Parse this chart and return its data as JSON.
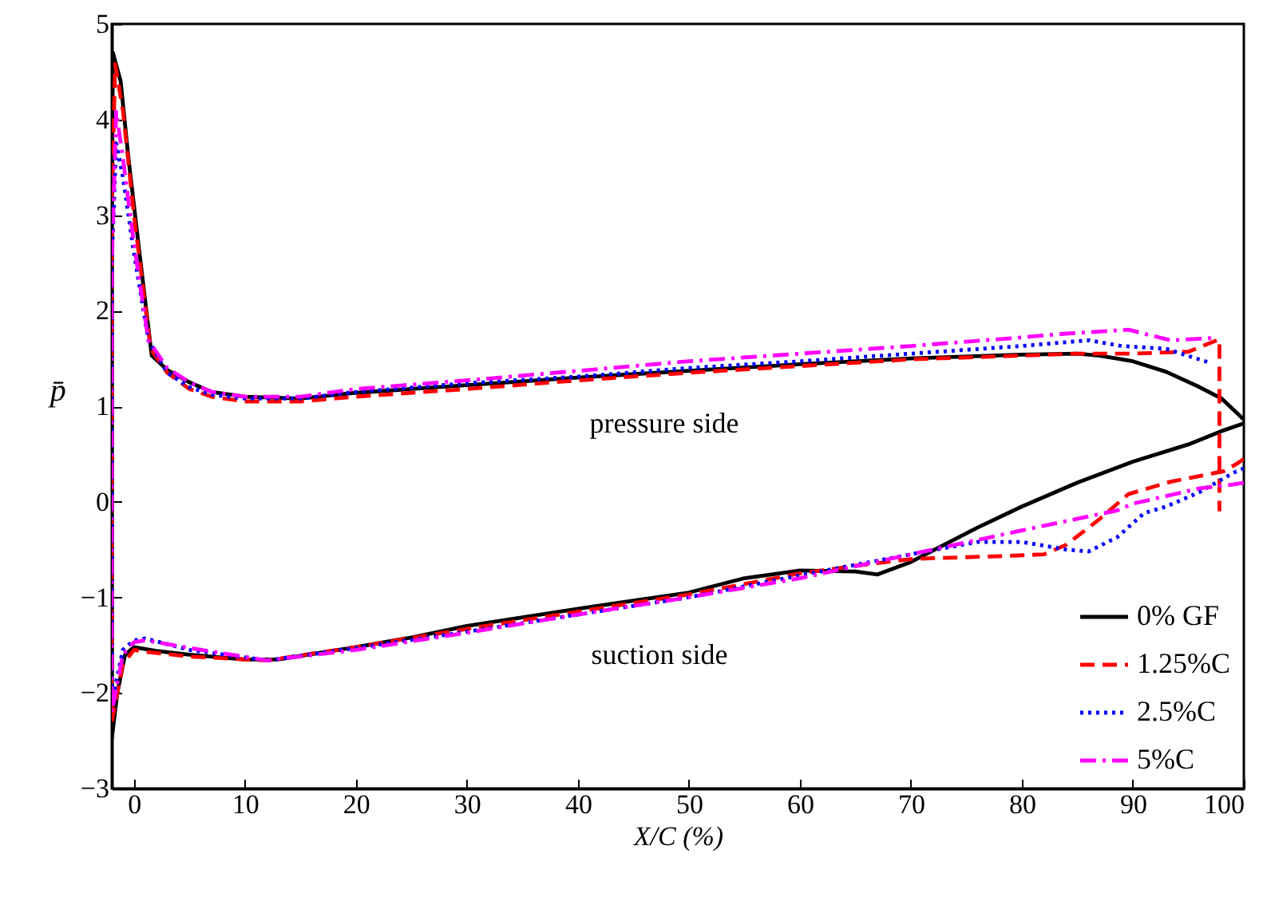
{
  "chart_data": {
    "type": "line",
    "xlabel": "X/C (%)",
    "ylabel": "p̄",
    "xlim": [
      -2,
      100
    ],
    "ylim": [
      -3,
      5
    ],
    "xticks": [
      0,
      10,
      20,
      30,
      40,
      50,
      60,
      70,
      80,
      90,
      100
    ],
    "yticks": [
      -3,
      -2,
      -1,
      0,
      1,
      2,
      3,
      4,
      5
    ],
    "grid": false,
    "legend": "bottom right",
    "annotations": [
      "pressure side",
      "suction side"
    ],
    "series": [
      {
        "name": "0% GF",
        "color": "#000000",
        "line_style": "solid",
        "x": [
          100,
          98,
          95,
          90,
          85,
          80,
          76,
          73,
          70,
          67,
          65,
          60,
          55,
          50,
          40,
          30,
          25,
          20,
          13,
          10,
          5,
          2,
          0,
          -0.8,
          -1.5,
          -2,
          -2,
          -2,
          -1.9,
          -1.2,
          -0.5,
          0.5,
          1.6,
          3,
          5,
          7,
          10,
          15,
          20,
          30,
          40,
          50,
          60,
          70,
          80,
          85,
          87,
          90,
          93,
          96,
          98,
          100
        ],
        "values": [
          0.82,
          0.74,
          0.6,
          0.42,
          0.2,
          -0.05,
          -0.27,
          -0.45,
          -0.63,
          -0.76,
          -0.73,
          -0.72,
          -0.8,
          -0.95,
          -1.12,
          -1.3,
          -1.42,
          -1.52,
          -1.65,
          -1.65,
          -1.6,
          -1.56,
          -1.52,
          -1.6,
          -2.0,
          -2.48,
          0,
          3,
          4.7,
          4.4,
          3.6,
          2.6,
          1.53,
          1.38,
          1.25,
          1.15,
          1.1,
          1.08,
          1.14,
          1.22,
          1.3,
          1.37,
          1.44,
          1.5,
          1.54,
          1.55,
          1.53,
          1.47,
          1.36,
          1.2,
          1.08,
          0.86
        ]
      },
      {
        "name": "1.25%C",
        "color": "#ff0000",
        "line_style": "dashed",
        "x": [
          100,
          99.4,
          98.2,
          93.4,
          89.6,
          86.8,
          84,
          82,
          78,
          72,
          70,
          65,
          60,
          50,
          40,
          30,
          20,
          12,
          5,
          1,
          0,
          -1,
          -2,
          -2,
          -1.7,
          -1,
          0,
          1.5,
          3,
          5,
          7,
          10,
          15,
          20,
          30,
          40,
          50,
          60,
          70,
          80,
          85,
          90,
          95,
          97.8,
          97.8
        ],
        "values": [
          0.45,
          0.4,
          0.32,
          0.21,
          0.08,
          -0.2,
          -0.45,
          -0.55,
          -0.57,
          -0.59,
          -0.6,
          -0.67,
          -0.75,
          -0.97,
          -1.15,
          -1.33,
          -1.52,
          -1.66,
          -1.62,
          -1.57,
          -1.55,
          -1.7,
          -2.3,
          3,
          4.58,
          4.1,
          3.0,
          1.6,
          1.35,
          1.18,
          1.1,
          1.05,
          1.05,
          1.1,
          1.18,
          1.27,
          1.35,
          1.42,
          1.49,
          1.53,
          1.55,
          1.55,
          1.57,
          1.7,
          -0.1
        ]
      },
      {
        "name": "2.5%C",
        "color": "#0000ff",
        "line_style": "dotted",
        "x": [
          100,
          99,
          96,
          93,
          91,
          88.6,
          86,
          84,
          80,
          76,
          70,
          60,
          50,
          40,
          30,
          20,
          12,
          5,
          1,
          0,
          -1,
          -2,
          -2,
          -1.6,
          -1,
          0,
          1.3,
          3,
          5,
          7,
          10,
          15,
          20,
          30,
          40,
          50,
          60,
          70,
          80,
          86,
          89,
          93,
          96.8
        ],
        "values": [
          0.35,
          0.3,
          0.1,
          -0.05,
          -0.12,
          -0.37,
          -0.52,
          -0.5,
          -0.42,
          -0.42,
          -0.55,
          -0.77,
          -1.0,
          -1.18,
          -1.36,
          -1.53,
          -1.66,
          -1.55,
          -1.43,
          -1.45,
          -1.55,
          -2.1,
          2.5,
          3.75,
          3.4,
          2.6,
          1.69,
          1.35,
          1.2,
          1.12,
          1.08,
          1.08,
          1.15,
          1.24,
          1.31,
          1.4,
          1.47,
          1.55,
          1.63,
          1.69,
          1.63,
          1.6,
          1.46
        ]
      },
      {
        "name": "5%C",
        "color": "#ff00ff",
        "line_style": "dashdot",
        "x": [
          100,
          99,
          96,
          90,
          88.6,
          80,
          70,
          60,
          50,
          40,
          30,
          20,
          12,
          5,
          1,
          0,
          -1,
          -2,
          -2,
          -1.6,
          -1,
          0,
          1.3,
          3,
          5,
          7,
          10,
          15,
          20,
          31,
          40,
          50,
          60,
          70,
          80,
          84,
          89.6,
          93.4,
          96.8,
          97.5
        ],
        "values": [
          0.2,
          0.18,
          0.14,
          -0.02,
          -0.09,
          -0.3,
          -0.55,
          -0.8,
          -1.0,
          -1.18,
          -1.37,
          -1.55,
          -1.66,
          -1.53,
          -1.45,
          -1.47,
          -1.6,
          -2.2,
          2.5,
          4.08,
          3.6,
          2.7,
          1.69,
          1.4,
          1.25,
          1.15,
          1.1,
          1.1,
          1.18,
          1.28,
          1.37,
          1.47,
          1.55,
          1.63,
          1.72,
          1.76,
          1.8,
          1.69,
          1.71,
          1.72
        ]
      }
    ]
  }
}
